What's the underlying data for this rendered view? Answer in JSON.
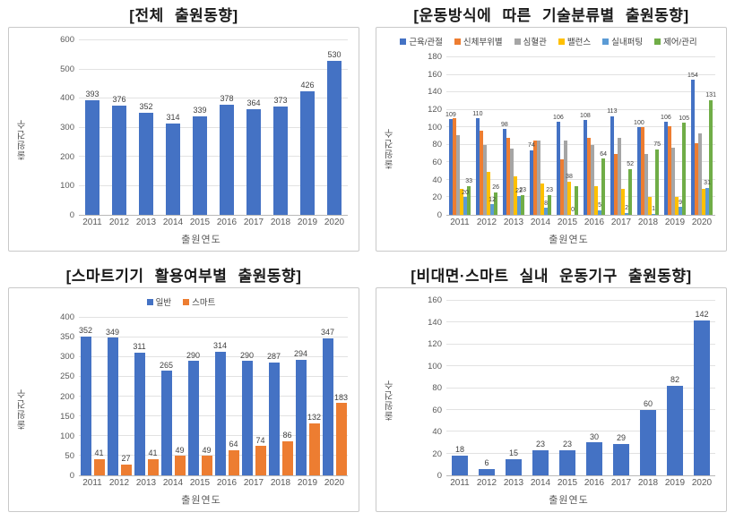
{
  "page": {
    "background": "#ffffff"
  },
  "chart_data": [
    {
      "type": "bar",
      "title": "[전체 출원동향]",
      "xlabel": "출원연도",
      "ylabel": "출원건수",
      "ylim": [
        0,
        600
      ],
      "ytick_step": 100,
      "grid": true,
      "show_legend": false,
      "legend_position": "none",
      "categories": [
        "2011",
        "2012",
        "2013",
        "2014",
        "2015",
        "2016",
        "2017",
        "2018",
        "2019",
        "2020"
      ],
      "series": [
        {
          "name": "출원건수",
          "color": "#4472C4",
          "show_labels": true,
          "values": [
            393,
            376,
            352,
            314,
            339,
            378,
            364,
            373,
            426,
            530
          ]
        }
      ]
    },
    {
      "type": "bar",
      "title": "[운동방식에 따른 기술분류별 출원동향]",
      "xlabel": "출원연도",
      "ylabel": "출원건수",
      "ylim": [
        0,
        180
      ],
      "ytick_step": 20,
      "grid": true,
      "show_legend": true,
      "legend_position": "top",
      "categories": [
        "2011",
        "2012",
        "2013",
        "2014",
        "2015",
        "2016",
        "2017",
        "2018",
        "2019",
        "2020"
      ],
      "series": [
        {
          "name": "근육/관절",
          "color": "#4472C4",
          "values": [
            109,
            110,
            98,
            74,
            106,
            108,
            113,
            100,
            106,
            154
          ],
          "labels": [
            "109",
            "110",
            "98",
            "74",
            "106",
            "108",
            "113",
            "100",
            "106",
            "154"
          ]
        },
        {
          "name": "신체부위별",
          "color": "#ED7D31",
          "values": [
            110,
            96,
            88,
            85,
            63,
            88,
            70,
            100,
            101,
            82
          ],
          "labels": [
            "",
            "",
            "",
            "",
            "",
            "",
            "",
            "",
            "",
            ""
          ]
        },
        {
          "name": "심혈관",
          "color": "#A5A5A5",
          "values": [
            91,
            80,
            76,
            85,
            85,
            80,
            88,
            70,
            77,
            93
          ],
          "labels": [
            "",
            "",
            "",
            "",
            "",
            "",
            "",
            "",
            "",
            ""
          ]
        },
        {
          "name": "밸런스",
          "color": "#FFC000",
          "values": [
            30,
            49,
            44,
            36,
            38,
            33,
            30,
            20,
            20,
            30
          ],
          "labels": [
            "",
            "",
            "",
            "",
            "38",
            "",
            "",
            "",
            "",
            ""
          ]
        },
        {
          "name": "실내퍼팅",
          "color": "#5B9BD5",
          "values": [
            20,
            12,
            22,
            8,
            0,
            5,
            2,
            1,
            9,
            31
          ],
          "labels": [
            "20",
            "12",
            "22",
            "8",
            "0",
            "5",
            "2",
            "1",
            "9",
            "31"
          ]
        },
        {
          "name": "제어/관리",
          "color": "#70AD47",
          "values": [
            33,
            26,
            23,
            23,
            33,
            64,
            52,
            75,
            105,
            131
          ],
          "labels": [
            "33",
            "26",
            "23",
            "23",
            "",
            "64",
            "52",
            "75",
            "105",
            "131"
          ]
        }
      ]
    },
    {
      "type": "bar",
      "title": "[스마트기기 활용여부별 출원동향]",
      "xlabel": "출원연도",
      "ylabel": "출원건수",
      "ylim": [
        0,
        400
      ],
      "ytick_step": 50,
      "grid": true,
      "show_legend": true,
      "legend_position": "top",
      "categories": [
        "2011",
        "2012",
        "2013",
        "2014",
        "2015",
        "2016",
        "2017",
        "2018",
        "2019",
        "2020"
      ],
      "series": [
        {
          "name": "일반",
          "color": "#4472C4",
          "show_labels": true,
          "values": [
            352,
            349,
            311,
            265,
            290,
            314,
            290,
            287,
            294,
            347
          ]
        },
        {
          "name": "스마트",
          "color": "#ED7D31",
          "show_labels": true,
          "values": [
            41,
            27,
            41,
            49,
            49,
            64,
            74,
            86,
            132,
            183
          ]
        }
      ]
    },
    {
      "type": "bar",
      "title": "[비대면·스마트 실내 운동기구 출원동향]",
      "xlabel": "출원연도",
      "ylabel": "출원건수",
      "ylim": [
        0,
        160
      ],
      "ytick_step": 20,
      "grid": true,
      "show_legend": false,
      "legend_position": "none",
      "categories": [
        "2011",
        "2012",
        "2013",
        "2014",
        "2015",
        "2016",
        "2017",
        "2018",
        "2019",
        "2020"
      ],
      "series": [
        {
          "name": "출원건수",
          "color": "#4472C4",
          "show_labels": true,
          "values": [
            18,
            6,
            15,
            23,
            23,
            30,
            29,
            60,
            82,
            142
          ]
        }
      ]
    }
  ]
}
